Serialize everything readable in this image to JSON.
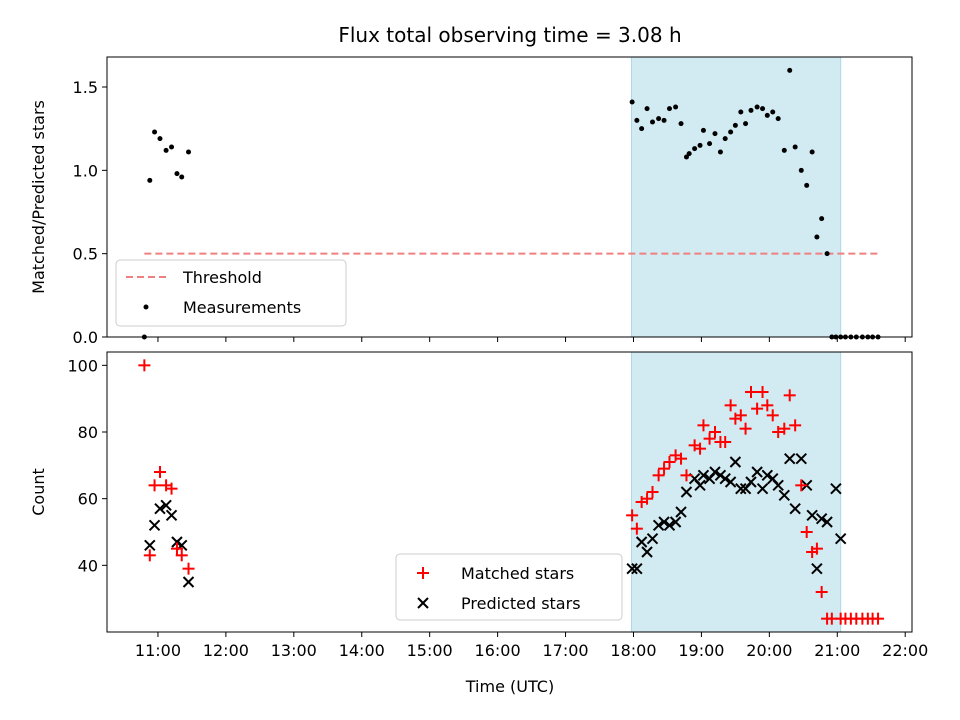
{
  "figure": {
    "title": "Flux total observing time = 3.08 h",
    "xlabel": "Time (UTC)"
  },
  "colors": {
    "shade": "#add8e6",
    "threshold": "#f08080",
    "measurement": "#000000",
    "matched": "#ff0000",
    "predicted": "#000000"
  },
  "chart_data": [
    {
      "type": "scatter",
      "panel": "top",
      "ylabel": "Matched/Predicted stars",
      "xlim": [
        10.25,
        22.1
      ],
      "ylim": [
        0,
        1.68
      ],
      "yticks": [
        0.0,
        0.5,
        1.0,
        1.5
      ],
      "yticklabels": [
        "0.0",
        "0.5",
        "1.0",
        "1.5"
      ],
      "x_tick_hours": [
        11,
        12,
        13,
        14,
        15,
        16,
        17,
        18,
        19,
        20,
        21,
        22
      ],
      "shaded_span": [
        17.97,
        21.05
      ],
      "legend": {
        "placement": "lower-left",
        "entries": [
          "Threshold",
          "Measurements"
        ]
      },
      "series": [
        {
          "name": "Threshold",
          "kind": "dashed-line",
          "x": [
            10.8,
            21.6
          ],
          "y": [
            0.5,
            0.5
          ]
        },
        {
          "name": "Measurements",
          "kind": "dot",
          "x": [
            10.8,
            10.88,
            10.95,
            11.03,
            11.12,
            11.2,
            11.28,
            11.35,
            11.45,
            17.98,
            18.05,
            18.12,
            18.2,
            18.28,
            18.37,
            18.45,
            18.53,
            18.62,
            18.7,
            18.78,
            18.82,
            18.9,
            18.98,
            19.03,
            19.12,
            19.2,
            19.28,
            19.35,
            19.43,
            19.5,
            19.58,
            19.65,
            19.73,
            19.82,
            19.9,
            19.97,
            20.05,
            20.13,
            20.22,
            20.3,
            20.38,
            20.47,
            20.55,
            20.63,
            20.7,
            20.77,
            20.85,
            20.92,
            20.98,
            21.05,
            21.12,
            21.2,
            21.28,
            21.37,
            21.45,
            21.52,
            21.6
          ],
          "y": [
            0.0,
            0.94,
            1.23,
            1.19,
            1.12,
            1.14,
            0.98,
            0.96,
            1.11,
            1.41,
            1.3,
            1.25,
            1.37,
            1.29,
            1.31,
            1.3,
            1.37,
            1.38,
            1.28,
            1.08,
            1.1,
            1.13,
            1.15,
            1.24,
            1.16,
            1.22,
            1.11,
            1.19,
            1.23,
            1.27,
            1.35,
            1.28,
            1.36,
            1.38,
            1.37,
            1.33,
            1.35,
            1.31,
            1.12,
            1.6,
            1.14,
            1.0,
            0.91,
            1.11,
            0.6,
            0.71,
            0.5,
            0.0,
            0.0,
            0.0,
            0.0,
            0.0,
            0.0,
            0.0,
            0.0,
            0.0,
            0.0
          ]
        }
      ]
    },
    {
      "type": "scatter",
      "panel": "bottom",
      "ylabel": "Count",
      "xlim": [
        10.25,
        22.1
      ],
      "ylim": [
        20,
        104
      ],
      "yticks": [
        40,
        60,
        80,
        100
      ],
      "yticklabels": [
        "40",
        "60",
        "80",
        "100"
      ],
      "x_tick_hours": [
        11,
        12,
        13,
        14,
        15,
        16,
        17,
        18,
        19,
        20,
        21,
        22
      ],
      "xticklabels": [
        "11:00",
        "12:00",
        "13:00",
        "14:00",
        "15:00",
        "16:00",
        "17:00",
        "18:00",
        "19:00",
        "20:00",
        "21:00",
        "22:00"
      ],
      "shaded_span": [
        17.97,
        21.05
      ],
      "legend": {
        "placement": "lower-center",
        "entries": [
          "Matched stars",
          "Predicted stars"
        ]
      },
      "series": [
        {
          "name": "Matched stars",
          "marker": "plus",
          "x": [
            10.8,
            10.88,
            10.95,
            11.03,
            11.12,
            11.2,
            11.28,
            11.35,
            11.45,
            17.98,
            18.05,
            18.12,
            18.2,
            18.28,
            18.37,
            18.45,
            18.53,
            18.62,
            18.7,
            18.78,
            18.9,
            18.98,
            19.03,
            19.12,
            19.2,
            19.28,
            19.35,
            19.43,
            19.5,
            19.58,
            19.65,
            19.73,
            19.82,
            19.9,
            19.97,
            20.05,
            20.13,
            20.22,
            20.3,
            20.38,
            20.47,
            20.55,
            20.63,
            20.7,
            20.77,
            20.85,
            20.92,
            21.05,
            21.12,
            21.2,
            21.28,
            21.37,
            21.45,
            21.52,
            21.6
          ],
          "y": [
            100,
            43,
            64,
            68,
            64,
            63,
            45,
            43,
            39,
            55,
            51,
            59,
            60,
            62,
            67,
            69,
            71,
            73,
            72,
            67,
            76,
            75,
            82,
            78,
            80,
            77,
            77,
            88,
            84,
            85,
            81,
            92,
            87,
            92,
            88,
            85,
            80,
            81,
            91,
            82,
            64,
            50,
            44,
            45,
            32,
            24,
            24,
            24,
            24,
            24,
            24,
            24,
            24,
            24,
            24
          ]
        },
        {
          "name": "Predicted stars",
          "marker": "x",
          "x": [
            10.88,
            10.95,
            11.03,
            11.12,
            11.2,
            11.28,
            11.35,
            11.45,
            17.98,
            18.05,
            18.12,
            18.2,
            18.28,
            18.37,
            18.45,
            18.53,
            18.62,
            18.7,
            18.78,
            18.9,
            18.98,
            19.03,
            19.12,
            19.2,
            19.28,
            19.35,
            19.43,
            19.5,
            19.58,
            19.65,
            19.73,
            19.82,
            19.9,
            19.97,
            20.05,
            20.13,
            20.22,
            20.3,
            20.38,
            20.47,
            20.55,
            20.63,
            20.7,
            20.77,
            20.85,
            20.98,
            21.05
          ],
          "y": [
            46,
            52,
            57,
            58,
            55,
            47,
            46,
            35,
            39,
            39,
            47,
            44,
            48,
            52,
            53,
            52,
            53,
            56,
            62,
            66,
            64,
            67,
            66,
            68,
            67,
            66,
            65,
            71,
            63,
            63,
            65,
            68,
            63,
            67,
            66,
            64,
            61,
            72,
            57,
            72,
            64,
            55,
            39,
            54,
            53,
            63,
            48
          ]
        }
      ]
    }
  ]
}
